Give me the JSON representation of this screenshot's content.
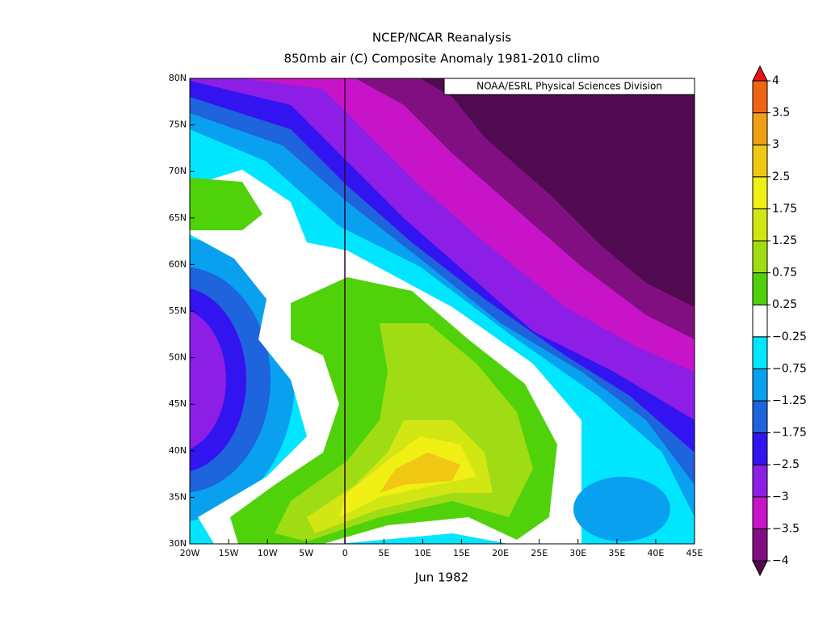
{
  "title": "NCEP/NCAR Reanalysis",
  "subtitle": "850mb air (C) Composite Anomaly 1981-2010 climo",
  "source": "NOAA/ESRL Physical Sciences Division",
  "date_label": "Jun 1982",
  "map": {
    "xlim": [
      -20,
      45
    ],
    "ylim": [
      30,
      80
    ],
    "xticks": [
      {
        "value": -20,
        "label": "20W"
      },
      {
        "value": -15,
        "label": "15W"
      },
      {
        "value": -10,
        "label": "10W"
      },
      {
        "value": -5,
        "label": "5W"
      },
      0,
      {
        "value": 5,
        "label": "5E"
      },
      {
        "value": 10,
        "label": "10E"
      },
      {
        "value": 15,
        "label": "15E"
      },
      {
        "value": 20,
        "label": "20E"
      },
      {
        "value": 25,
        "label": "25E"
      },
      {
        "value": 30,
        "label": "30E"
      },
      {
        "value": 35,
        "label": "35E"
      },
      {
        "value": 40,
        "label": "40E"
      },
      {
        "value": 45,
        "label": "45E"
      }
    ],
    "yticks": [
      {
        "value": 30,
        "label": "30N"
      },
      {
        "value": 35,
        "label": "35N"
      },
      {
        "value": 40,
        "label": "40N"
      },
      {
        "value": 45,
        "label": "45N"
      },
      {
        "value": 50,
        "label": "50N"
      },
      {
        "value": 55,
        "label": "55N"
      },
      {
        "value": 60,
        "label": "60N"
      },
      {
        "value": 65,
        "label": "65N"
      },
      {
        "value": 70,
        "label": "70N"
      },
      {
        "value": 75,
        "label": "75N"
      },
      {
        "value": 80,
        "label": "80N"
      }
    ]
  },
  "colorbar": {
    "levels": [
      {
        "value": -4,
        "label": "−4"
      },
      {
        "value": -3.5,
        "label": "−3.5"
      },
      {
        "value": -3,
        "label": "−3"
      },
      {
        "value": -2.5,
        "label": "−2.5"
      },
      {
        "value": -1.75,
        "label": "−1.75"
      },
      {
        "value": -1.25,
        "label": "−1.25"
      },
      {
        "value": -0.75,
        "label": "−0.75"
      },
      {
        "value": -0.25,
        "label": "−0.25"
      },
      0.25,
      0.75,
      1.25,
      1.75,
      2.5,
      3,
      3.5,
      4
    ],
    "colors": [
      "#500a50",
      "#820f82",
      "#c814c8",
      "#8c1ee6",
      "#3214f0",
      "#1e64dc",
      "#0aa0f0",
      "#00e6ff",
      "#ffffff",
      "#50d20a",
      "#a0dc14",
      "#d2e614",
      "#f0f014",
      "#f0c814",
      "#f0a014",
      "#f06414",
      "#e61414"
    ]
  }
}
